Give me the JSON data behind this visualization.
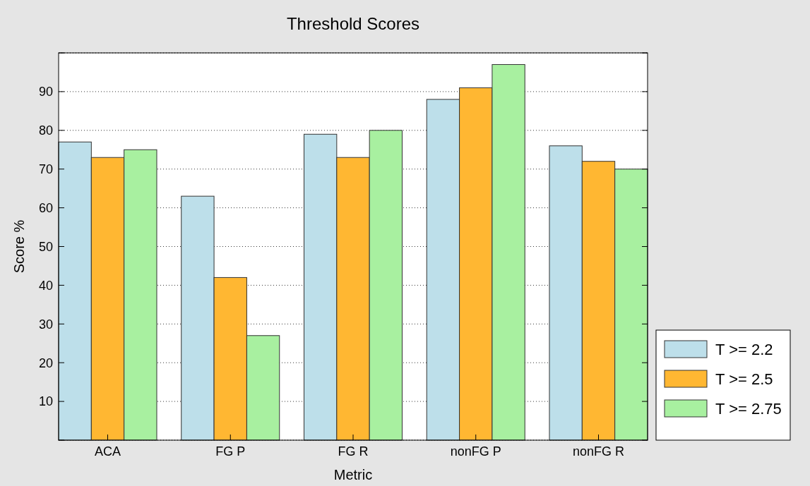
{
  "chart_data": {
    "type": "bar",
    "title": "Threshold Scores",
    "xlabel": "Metric",
    "ylabel": "Score %",
    "categories": [
      "ACA",
      "FG P",
      "FG R",
      "nonFG P",
      "nonFG R"
    ],
    "series": [
      {
        "name": "T >= 2.2",
        "color": "#bddfea",
        "values": [
          77,
          63,
          79,
          88,
          76
        ]
      },
      {
        "name": "T >= 2.5",
        "color": "#ffb732",
        "values": [
          73,
          42,
          73,
          91,
          72
        ]
      },
      {
        "name": "T >= 2.75",
        "color": "#a8f0a0",
        "values": [
          75,
          27,
          80,
          97,
          70
        ]
      }
    ],
    "ylim": [
      0,
      100
    ],
    "yticks": [
      {
        "value": 0,
        "label": null
      },
      10,
      20,
      30,
      40,
      50,
      60,
      70,
      80,
      90,
      {
        "value": 100,
        "label": null
      }
    ],
    "grid": "y",
    "legend": "bottom right"
  }
}
